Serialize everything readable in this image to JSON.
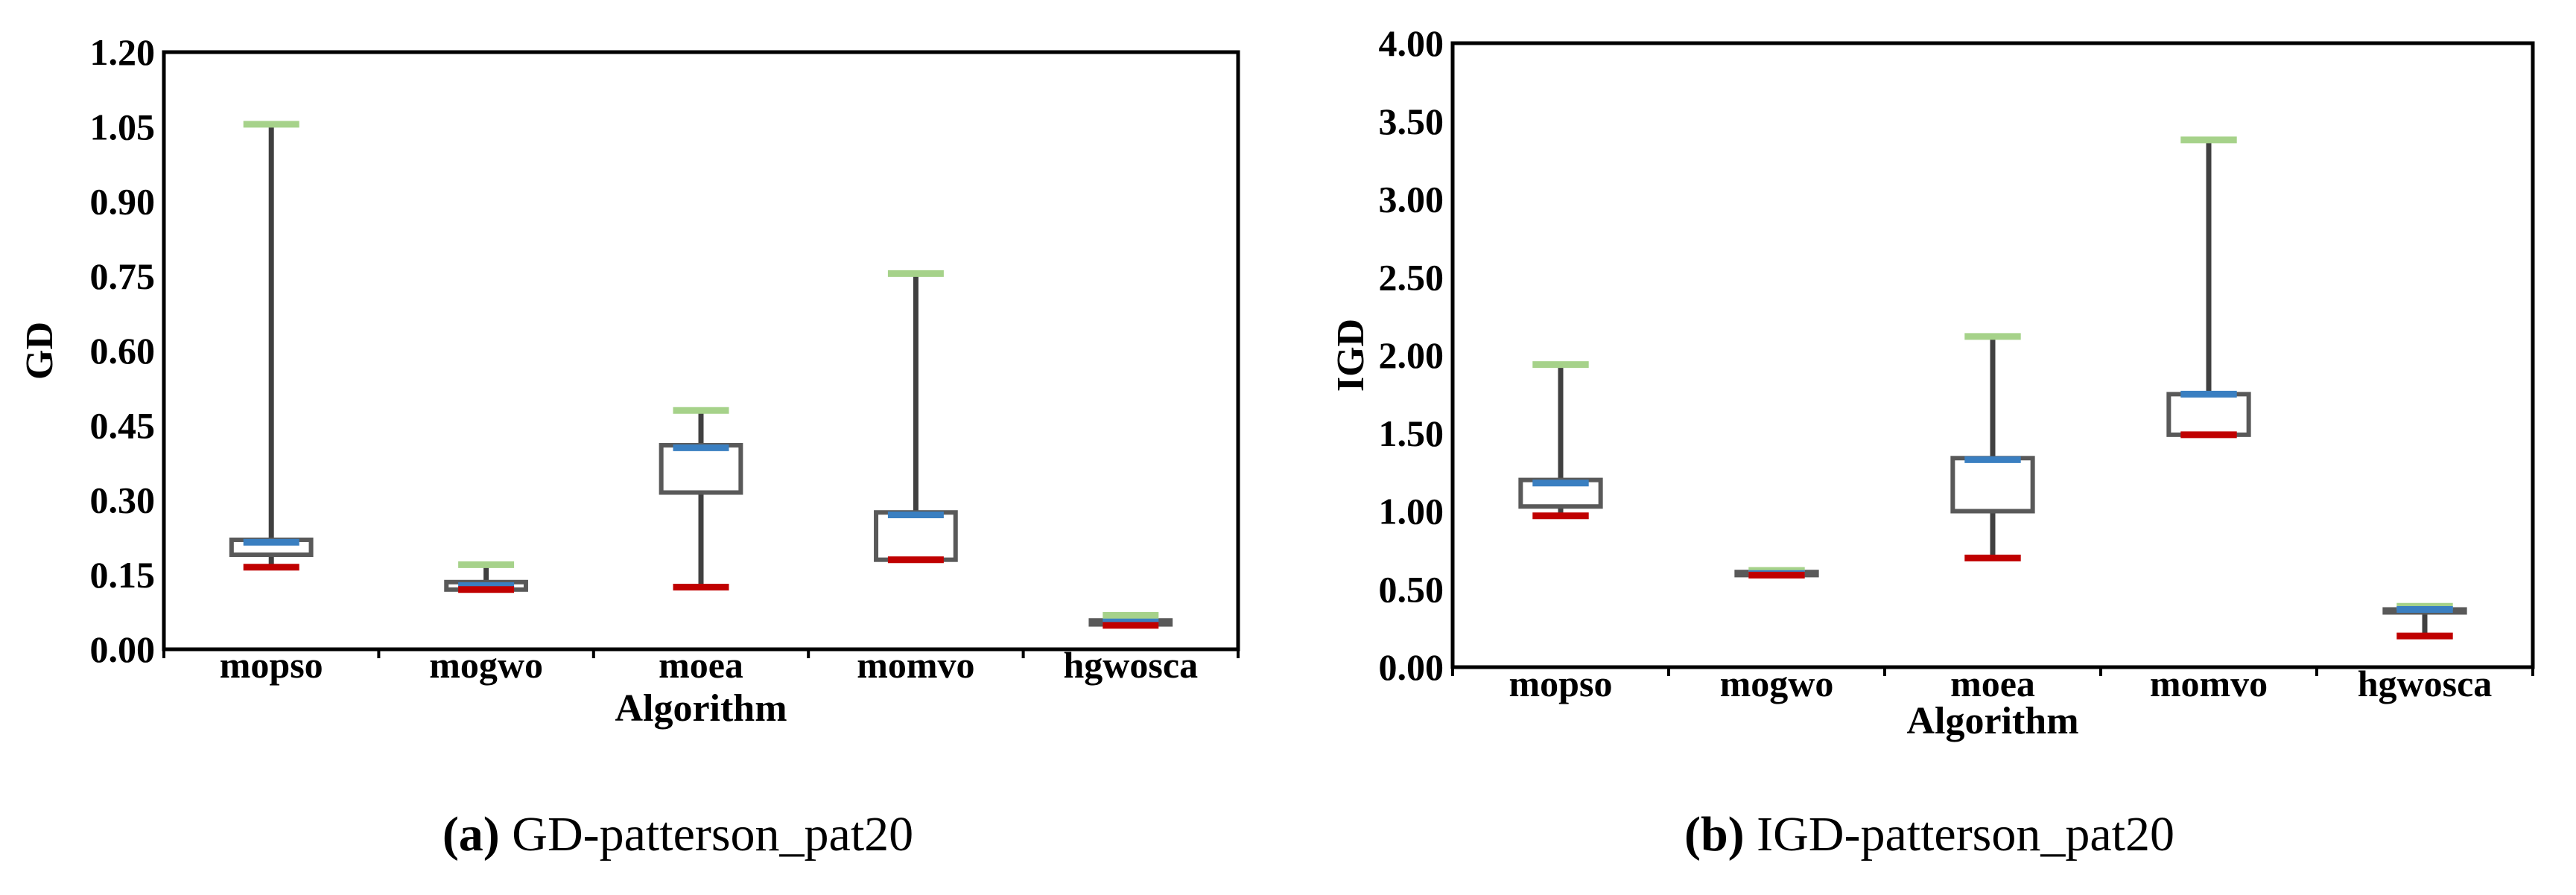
{
  "chart_data": [
    {
      "type": "box",
      "ylabel": "GD",
      "xlabel": "Algorithm",
      "ylim": [
        0.0,
        1.2
      ],
      "yticks": [
        "0.00",
        "0.15",
        "0.30",
        "0.45",
        "0.60",
        "0.75",
        "0.90",
        "1.05",
        "1.20"
      ],
      "categories": [
        "mopso",
        "mogwo",
        "moea",
        "momvo",
        "hgwosca"
      ],
      "boxes": [
        {
          "name": "mopso",
          "min": 0.165,
          "q1": 0.19,
          "median": 0.215,
          "q3": 0.22,
          "max": 1.055
        },
        {
          "name": "mogwo",
          "min": 0.12,
          "q1": 0.12,
          "median": 0.128,
          "q3": 0.135,
          "max": 0.17
        },
        {
          "name": "moea",
          "min": 0.125,
          "q1": 0.315,
          "median": 0.405,
          "q3": 0.41,
          "max": 0.48
        },
        {
          "name": "momvo",
          "min": 0.18,
          "q1": 0.18,
          "median": 0.27,
          "q3": 0.275,
          "max": 0.755
        },
        {
          "name": "hgwosca",
          "min": 0.048,
          "q1": 0.05,
          "median": 0.055,
          "q3": 0.058,
          "max": 0.068
        }
      ],
      "caption_letter": "(a)",
      "caption_text": " GD-patterson_pat20"
    },
    {
      "type": "box",
      "ylabel": "IGD",
      "xlabel": "Algorithm",
      "ylim": [
        0.0,
        4.0
      ],
      "yticks": [
        "0.00",
        "0.50",
        "1.00",
        "1.50",
        "2.00",
        "2.50",
        "3.00",
        "3.50",
        "4.00"
      ],
      "categories": [
        "mopso",
        "mogwo",
        "moea",
        "momvo",
        "hgwosca"
      ],
      "boxes": [
        {
          "name": "mopso",
          "min": 0.97,
          "q1": 1.03,
          "median": 1.18,
          "q3": 1.2,
          "max": 1.94
        },
        {
          "name": "mogwo",
          "min": 0.59,
          "q1": 0.59,
          "median": 0.6,
          "q3": 0.61,
          "max": 0.62
        },
        {
          "name": "moea",
          "min": 0.7,
          "q1": 1.0,
          "median": 1.33,
          "q3": 1.34,
          "max": 2.12
        },
        {
          "name": "momvo",
          "min": 1.49,
          "q1": 1.49,
          "median": 1.75,
          "q3": 1.75,
          "max": 3.38
        },
        {
          "name": "hgwosca",
          "min": 0.2,
          "q1": 0.36,
          "median": 0.37,
          "q3": 0.37,
          "max": 0.39
        }
      ],
      "caption_letter": "(b)",
      "caption_text": " IGD-patterson_pat20"
    }
  ],
  "colors": {
    "box": "#595959",
    "whisker": "#404040",
    "max_marker": "#a6d28a",
    "median_marker": "#3a7fc1",
    "min_marker": "#c00000",
    "frame": "#000000"
  }
}
